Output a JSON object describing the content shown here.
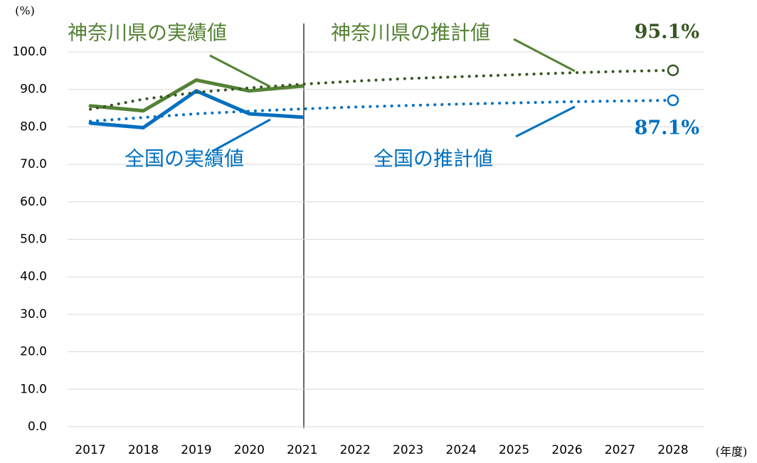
{
  "chart_data": {
    "type": "line",
    "y_unit": "(%)",
    "x_unit": "(年度)",
    "categories": [
      "2017",
      "2018",
      "2019",
      "2020",
      "2021",
      "2022",
      "2023",
      "2024",
      "2025",
      "2026",
      "2027",
      "2028"
    ],
    "ylim": [
      0,
      100
    ],
    "yticks": [
      {
        "value": 0,
        "label": "0.0"
      },
      {
        "value": 10,
        "label": "10.0"
      },
      {
        "value": 20,
        "label": "20.0"
      },
      {
        "value": 30,
        "label": "30.0"
      },
      {
        "value": 40,
        "label": "40.0"
      },
      {
        "value": 50,
        "label": "50.0"
      },
      {
        "value": 60,
        "label": "60.0"
      },
      {
        "value": 70,
        "label": "70.0"
      },
      {
        "value": 80,
        "label": "80.0"
      },
      {
        "value": 90,
        "label": "90.0"
      },
      {
        "value": 100,
        "label": "100.0"
      }
    ],
    "grid": true,
    "series": [
      {
        "name": "神奈川県の実績値",
        "color": "#548235",
        "style": "solid",
        "values": [
          85.6,
          84.3,
          92.5,
          89.6,
          90.9,
          null,
          null,
          null,
          null,
          null,
          null,
          null
        ]
      },
      {
        "name": "全国の実績値",
        "color": "#0070c0",
        "style": "solid",
        "values": [
          81.0,
          79.8,
          89.6,
          83.5,
          82.6,
          null,
          null,
          null,
          null,
          null,
          null,
          null
        ]
      },
      {
        "name": "神奈川県の推計値",
        "color": "#375623",
        "style": "dotted",
        "values": [
          84.7,
          87.4,
          89.2,
          90.4,
          91.4,
          92.2,
          92.9,
          93.4,
          93.9,
          94.4,
          94.8,
          95.1
        ],
        "value_labels": [
          null,
          null,
          null,
          null,
          null,
          null,
          null,
          null,
          null,
          null,
          null,
          "95.1%"
        ]
      },
      {
        "name": "全国の推計値",
        "color": "#0070c0",
        "style": "dotted",
        "values": [
          81.5,
          82.5,
          83.5,
          84.2,
          84.8,
          85.3,
          85.7,
          86.1,
          86.4,
          86.7,
          86.9,
          87.1
        ],
        "value_labels": [
          null,
          null,
          null,
          null,
          null,
          null,
          null,
          null,
          null,
          null,
          null,
          "87.1%"
        ]
      }
    ]
  }
}
